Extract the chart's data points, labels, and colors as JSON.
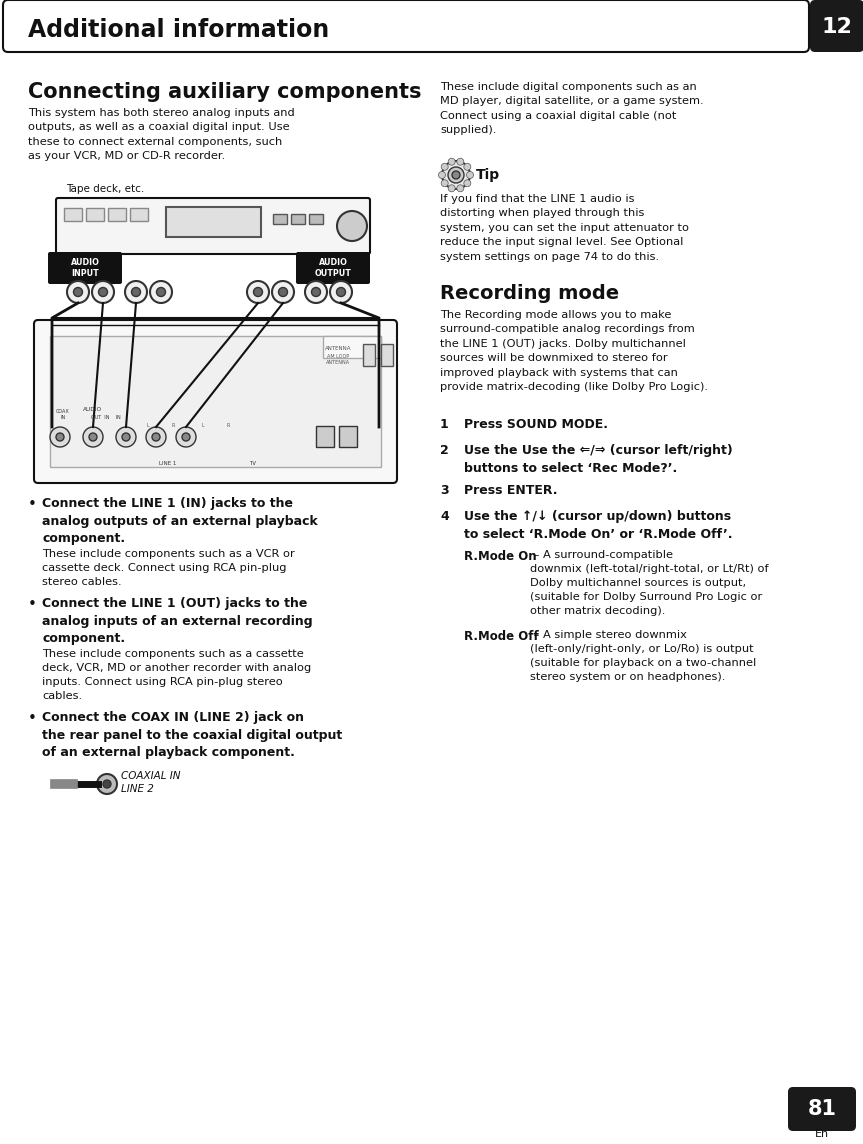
{
  "page_title": "Additional information",
  "chapter_num": "12",
  "page_num": "81",
  "page_num_sub": "En",
  "bg": "#ffffff",
  "section_title_1": "Connecting auxiliary components",
  "section_body_1": "This system has both stereo analog inputs and\noutputs, as well as a coaxial digital input. Use\nthese to connect external components, such\nas your VCR, MD or CD-R recorder.",
  "tape_label": "Tape deck, etc.",
  "audio_input_label": "AUDIO\nINPUT",
  "audio_output_label": "AUDIO\nOUTPUT",
  "bullet1_bold": "Connect the LINE 1 (IN) jacks to the\nanalog outputs of an external playback\ncomponent.",
  "bullet1_body": "These include components such as a VCR or\ncassette deck. Connect using RCA pin-plug\nstereo cables.",
  "bullet2_bold": "Connect the LINE 1 (OUT) jacks to the\nanalog inputs of an external recording\ncomponent.",
  "bullet2_body": "These include components such as a cassette\ndeck, VCR, MD or another recorder with analog\ninputs. Connect using RCA pin-plug stereo\ncables.",
  "bullet3_bold": "Connect the COAX IN (LINE 2) jack on\nthe rear panel to the coaxial digital output\nof an external playback component.",
  "right_body1": "These include digital components such as an\nMD player, digital satellite, or a game system.\nConnect using a coaxial digital cable (not\nsupplied).",
  "tip_title": "Tip",
  "tip_body_line1": "If you find that the ",
  "tip_bold": "LINE 1",
  "tip_body_line2": " audio is\ndistorting when played through this\nsystem, you can set the input attenuator to\nreduce the input signal level. See ",
  "tip_italic": "Optional\nsystem settings",
  "tip_body_line3": " on page 74 to do this.",
  "rec_title": "Recording mode",
  "rec_body": "The Recording mode allows you to make\nsurround-compatible analog recordings from\nthe ",
  "rec_bold": "LINE 1 (OUT)",
  "rec_body2": " jacks. Dolby multichannel\nsources will be downmixed to stereo for\nimproved playback with systems that can\nprovide matrix-decoding (like Dolby Pro Logic).",
  "step1": "Press SOUND MODE.",
  "step2": "Use the Use the ⇐/⇒ (cursor left/right)\nbuttons to select ‘Rec Mode?’.",
  "step3": "Press ENTER.",
  "step4": "Use the ↑/↓ (cursor up/down) buttons\nto select ‘R.Mode On’ or ‘R.Mode Off’.",
  "rmode_on_title": "R.Mode On",
  "rmode_on_body": " – A surround-compatible\ndownmix (left-total/right-total, or Lt/Rt) of\nDolby multichannel sources is output,\n(suitable for Dolby Surround Pro Logic or\nother matrix decoding).",
  "rmode_off_title": "R.Mode Off",
  "rmode_off_body": " – A simple stereo downmix\n(left-only/right-only, or Lo/Ro) is output\n(suitable for playback on a two-channel\nstereo system or on headphones)."
}
